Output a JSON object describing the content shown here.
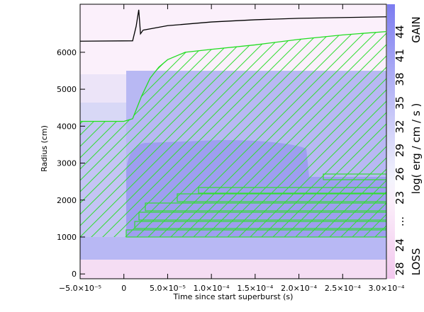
{
  "chart_data": {
    "type": "line",
    "xlabel": "Time since start superburst (s)",
    "ylabel": "Radius (cm)",
    "xlim": [
      -5e-05,
      0.0003
    ],
    "ylim": [
      -130,
      7300
    ],
    "xticks": [
      {
        "value": -5e-05,
        "label": "−5.0×10⁻⁵"
      },
      0,
      {
        "value": 5e-05,
        "label": "5.0×10⁻⁵"
      },
      {
        "value": 0.0001,
        "label": "1.0×10⁻⁴"
      },
      {
        "value": 0.00015,
        "label": "1.5×10⁻⁴"
      },
      {
        "value": 0.0002,
        "label": "2.0×10⁻⁴"
      },
      {
        "value": 0.00025,
        "label": "2.5×10⁻⁴"
      },
      {
        "value": 0.0003,
        "label": "3.0×10⁻⁴"
      }
    ],
    "yticks": [
      0,
      1000,
      2000,
      3000,
      4000,
      5000,
      6000
    ],
    "series": [
      {
        "color": "#22dd22",
        "x": [
          -5e-05,
          0,
          1e-05,
          2e-05,
          3e-05,
          4e-05,
          5e-05,
          7e-05,
          0.0001,
          0.00015,
          0.0002,
          0.00025,
          0.0003
        ],
        "values": [
          4130,
          4130,
          4200,
          4800,
          5300,
          5600,
          5800,
          6000,
          6080,
          6200,
          6350,
          6470,
          6560
        ]
      },
      {
        "color": "#000000",
        "x": [
          -5e-05,
          1e-05,
          1.4e-05,
          1.7e-05,
          1.9e-05,
          2.2e-05,
          5e-05,
          0.0001,
          0.00015,
          0.0002,
          0.0003
        ],
        "values": [
          6300,
          6310,
          6700,
          7150,
          6500,
          6600,
          6720,
          6820,
          6880,
          6920,
          6960
        ]
      }
    ],
    "colorbar": {
      "low_label": "LOSS",
      "high_label": "GAIN",
      "label": "log( erg / cm / s )",
      "ticks": [
        "28",
        "24",
        "...",
        "23",
        "26",
        "29",
        "32",
        "35",
        "38",
        "41",
        "44"
      ]
    }
  }
}
